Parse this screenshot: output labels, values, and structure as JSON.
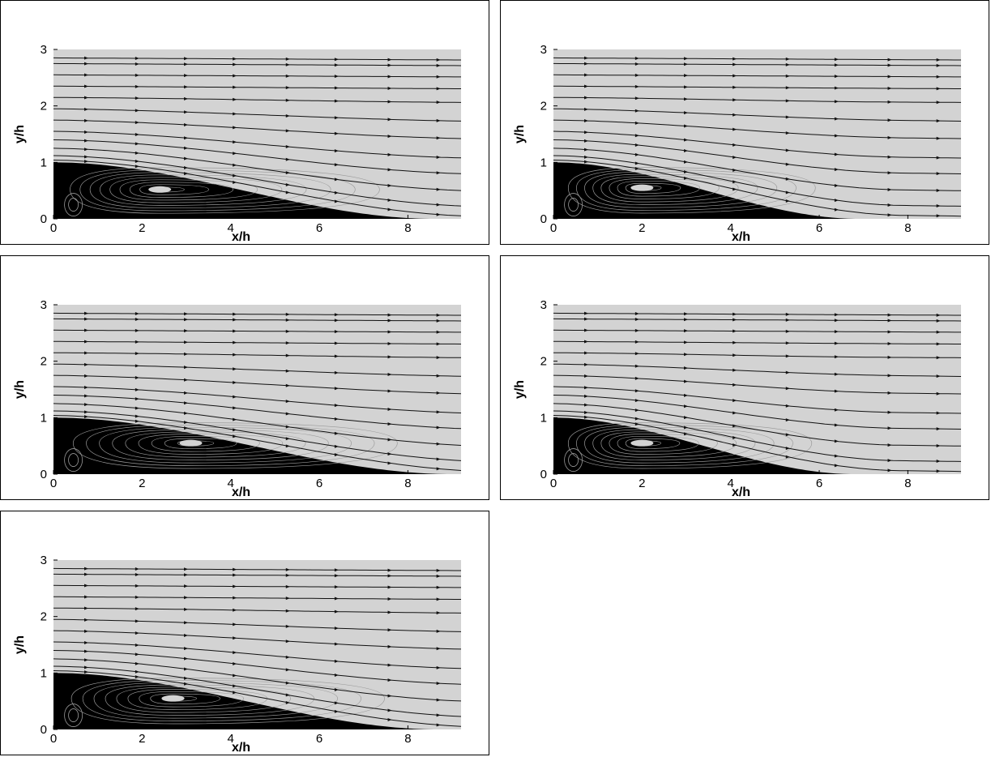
{
  "chart_data": [
    {
      "type": "streamline",
      "xlabel": "x/h",
      "ylabel": "y/h",
      "xlim": [
        0,
        9.2
      ],
      "ylim": [
        0,
        3
      ],
      "xticks": [
        "0",
        "2",
        "4",
        "6",
        "8"
      ],
      "yticks": [
        "0",
        "1",
        "2",
        "3"
      ],
      "reattachment_x": 8.6,
      "vortex_center": [
        2.4,
        0.52
      ]
    },
    {
      "type": "streamline",
      "xlabel": "x/h",
      "ylabel": "y/h",
      "xlim": [
        0,
        9.2
      ],
      "ylim": [
        0,
        3
      ],
      "xticks": [
        "0",
        "2",
        "4",
        "6",
        "8"
      ],
      "yticks": [
        "0",
        "1",
        "2",
        "3"
      ],
      "reattachment_x": 6.9,
      "vortex_center": [
        2.0,
        0.55
      ]
    },
    {
      "type": "streamline",
      "xlabel": "x/h",
      "ylabel": "y/h",
      "xlim": [
        0,
        9.2
      ],
      "ylim": [
        0,
        3
      ],
      "xticks": [
        "0",
        "2",
        "4",
        "6",
        "8"
      ],
      "yticks": [
        "0",
        "1",
        "2",
        "3"
      ],
      "reattachment_x": 9.0,
      "vortex_center": [
        3.1,
        0.55
      ]
    },
    {
      "type": "streamline",
      "xlabel": "x/h",
      "ylabel": "y/h",
      "xlim": [
        0,
        9.2
      ],
      "ylim": [
        0,
        3
      ],
      "xticks": [
        "0",
        "2",
        "4",
        "6",
        "8"
      ],
      "yticks": [
        "0",
        "1",
        "2",
        "3"
      ],
      "reattachment_x": 6.8,
      "vortex_center": [
        2.0,
        0.55
      ]
    },
    {
      "type": "streamline",
      "xlabel": "x/h",
      "ylabel": "y/h",
      "xlim": [
        0,
        9.2
      ],
      "ylim": [
        0,
        3
      ],
      "xticks": [
        "0",
        "2",
        "4",
        "6",
        "8"
      ],
      "yticks": [
        "0",
        "1",
        "2",
        "3"
      ],
      "reattachment_x": 8.7,
      "vortex_center": [
        2.7,
        0.55
      ]
    }
  ]
}
